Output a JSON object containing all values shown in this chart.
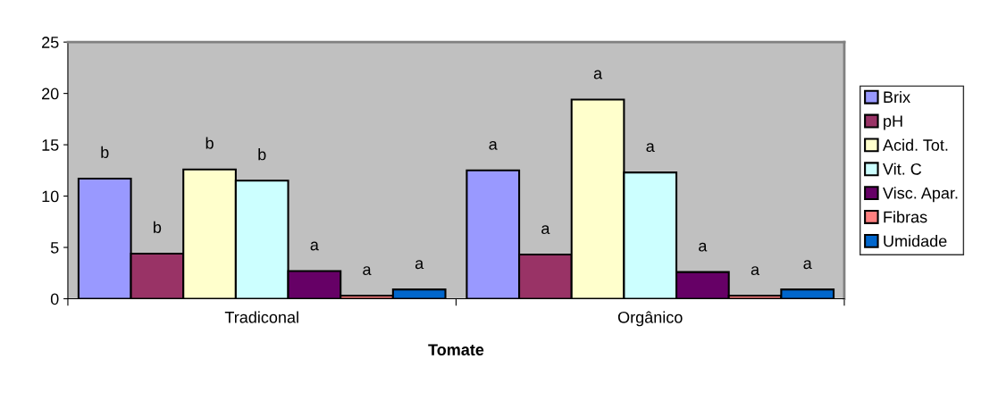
{
  "chart_data": {
    "type": "bar",
    "xlabel": "Tomate",
    "categories": [
      "Tradiconal",
      "Orgânico"
    ],
    "series": [
      {
        "name": "Brix",
        "color": "#9999ff",
        "values": [
          11.7,
          12.5
        ],
        "value_labels": [
          "b",
          "a"
        ]
      },
      {
        "name": "pH",
        "color": "#993366",
        "values": [
          4.4,
          4.3
        ],
        "value_labels": [
          "b",
          "a"
        ]
      },
      {
        "name": "Acid. Tot.",
        "color": "#ffffcc",
        "values": [
          12.6,
          19.4
        ],
        "value_labels": [
          "b",
          "a"
        ]
      },
      {
        "name": "Vit. C",
        "color": "#ccffff",
        "values": [
          11.5,
          12.3
        ],
        "value_labels": [
          "b",
          "a"
        ]
      },
      {
        "name": "Visc. Apar.",
        "color": "#660066",
        "values": [
          2.7,
          2.6
        ],
        "value_labels": [
          "a",
          "a"
        ]
      },
      {
        "name": "Fibras",
        "color": "#ff8080",
        "values": [
          0.3,
          0.3
        ],
        "value_labels": [
          "a",
          "a"
        ]
      },
      {
        "name": "Umidade",
        "color": "#0066cc",
        "values": [
          0.9,
          0.9
        ],
        "value_labels": [
          "a",
          "a"
        ]
      }
    ],
    "ylim": [
      0,
      25
    ],
    "yticks": [
      0,
      5,
      10,
      15,
      20,
      25
    ],
    "grid": false,
    "legend": "right"
  }
}
